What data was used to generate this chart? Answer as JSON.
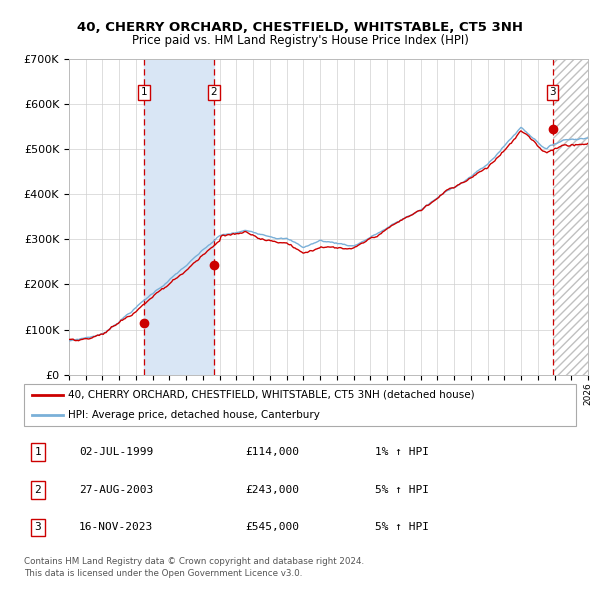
{
  "title1": "40, CHERRY ORCHARD, CHESTFIELD, WHITSTABLE, CT5 3NH",
  "title2": "Price paid vs. HM Land Registry's House Price Index (HPI)",
  "x_start_year": 1995,
  "x_end_year": 2026,
  "y_min": 0,
  "y_max": 700000,
  "y_ticks": [
    0,
    100000,
    200000,
    300000,
    400000,
    500000,
    600000,
    700000
  ],
  "y_tick_labels": [
    "£0",
    "£100K",
    "£200K",
    "£300K",
    "£400K",
    "£500K",
    "£600K",
    "£700K"
  ],
  "sale_points": [
    {
      "label": "1",
      "date_year": 1999.5,
      "price": 114000,
      "date_str": "02-JUL-1999",
      "pct": "1%"
    },
    {
      "label": "2",
      "date_year": 2003.65,
      "price": 243000,
      "date_str": "27-AUG-2003",
      "pct": "5%"
    },
    {
      "label": "3",
      "date_year": 2023.88,
      "price": 545000,
      "date_str": "16-NOV-2023",
      "pct": "5%"
    }
  ],
  "legend_line1": "40, CHERRY ORCHARD, CHESTFIELD, WHITSTABLE, CT5 3NH (detached house)",
  "legend_line2": "HPI: Average price, detached house, Canterbury",
  "footnote1": "Contains HM Land Registry data © Crown copyright and database right 2024.",
  "footnote2": "This data is licensed under the Open Government Licence v3.0.",
  "hpi_line_color": "#7ab0d8",
  "price_line_color": "#cc0000",
  "sale_marker_color": "#cc0000",
  "highlight_fill": "#d9e6f5",
  "hatch_color": "#c0c0c0",
  "grid_color": "#d0d0d0",
  "vline_color": "#cc0000",
  "background_plot": "#ffffff",
  "background_fig": "#ffffff"
}
